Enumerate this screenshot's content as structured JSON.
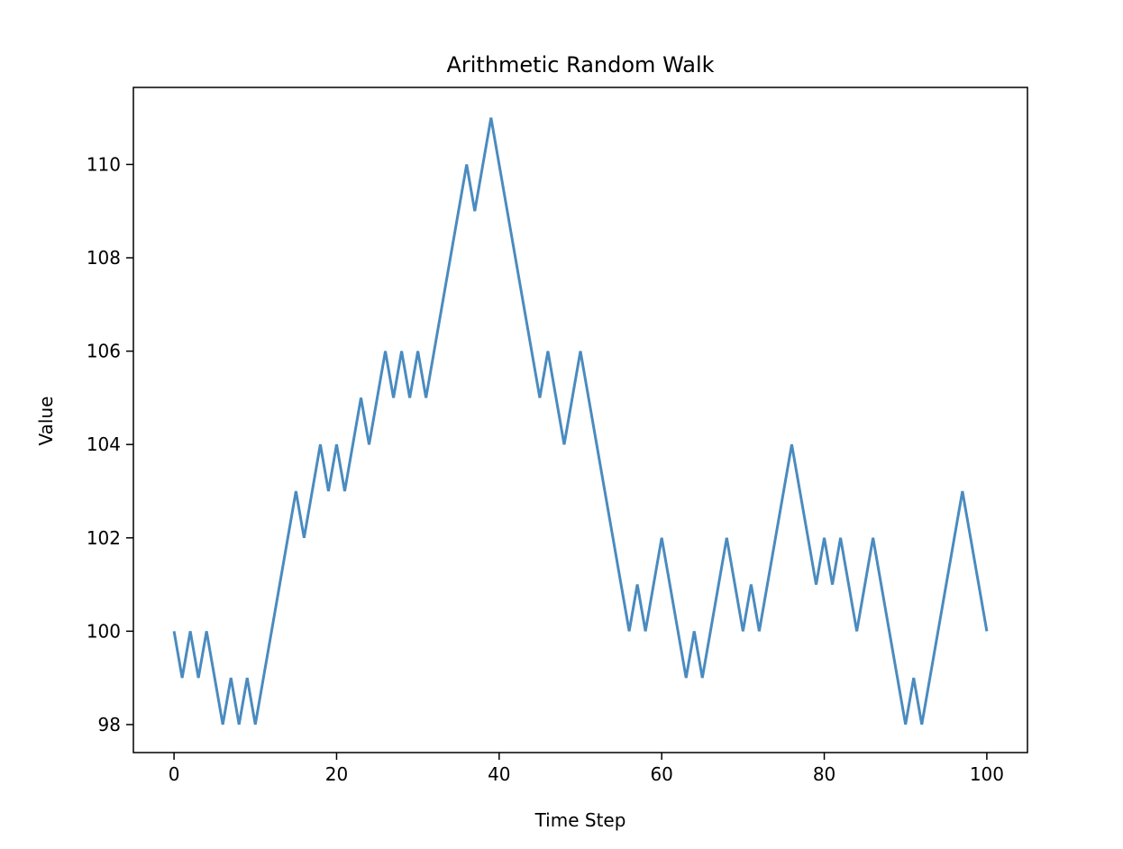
{
  "chart_data": {
    "type": "line",
    "title": "Arithmetic Random Walk",
    "xlabel": "Time Step",
    "ylabel": "Value",
    "xlim": [
      -5,
      105
    ],
    "ylim": [
      97.4,
      111.65
    ],
    "xticks": [
      0,
      20,
      40,
      60,
      80,
      100
    ],
    "yticks": [
      98,
      100,
      102,
      104,
      106,
      108,
      110
    ],
    "grid": false,
    "legend": "none",
    "series": [
      {
        "color": "#4a8bbf",
        "x": [
          0,
          1,
          2,
          3,
          4,
          5,
          6,
          7,
          8,
          9,
          10,
          11,
          12,
          13,
          14,
          15,
          16,
          17,
          18,
          19,
          20,
          21,
          22,
          23,
          24,
          25,
          26,
          27,
          28,
          29,
          30,
          31,
          32,
          33,
          34,
          35,
          36,
          37,
          38,
          39,
          40,
          41,
          42,
          43,
          44,
          45,
          46,
          47,
          48,
          49,
          50,
          51,
          52,
          53,
          54,
          55,
          56,
          57,
          58,
          59,
          60,
          61,
          62,
          63,
          64,
          65,
          66,
          67,
          68,
          69,
          70,
          71,
          72,
          73,
          74,
          75,
          76,
          77,
          78,
          79,
          80,
          81,
          82,
          83,
          84,
          85,
          86,
          87,
          88,
          89,
          90,
          91,
          92,
          93,
          94,
          95,
          96,
          97,
          98,
          99,
          100
        ],
        "y": [
          100,
          99,
          100,
          99,
          100,
          99,
          98,
          99,
          98,
          99,
          98,
          99,
          100,
          101,
          102,
          103,
          102,
          103,
          104,
          103,
          104,
          103,
          104,
          105,
          104,
          105,
          106,
          105,
          106,
          105,
          106,
          105,
          106,
          107,
          108,
          109,
          110,
          109,
          110,
          111,
          110,
          109,
          108,
          107,
          106,
          105,
          106,
          105,
          104,
          105,
          106,
          105,
          104,
          103,
          102,
          101,
          100,
          101,
          100,
          101,
          102,
          101,
          100,
          99,
          100,
          99,
          100,
          101,
          102,
          101,
          100,
          101,
          100,
          101,
          102,
          103,
          104,
          103,
          102,
          101,
          102,
          101,
          102,
          101,
          100,
          101,
          102,
          101,
          100,
          99,
          98,
          99,
          98,
          99,
          100,
          101,
          102,
          103,
          102,
          101,
          100
        ]
      }
    ]
  }
}
